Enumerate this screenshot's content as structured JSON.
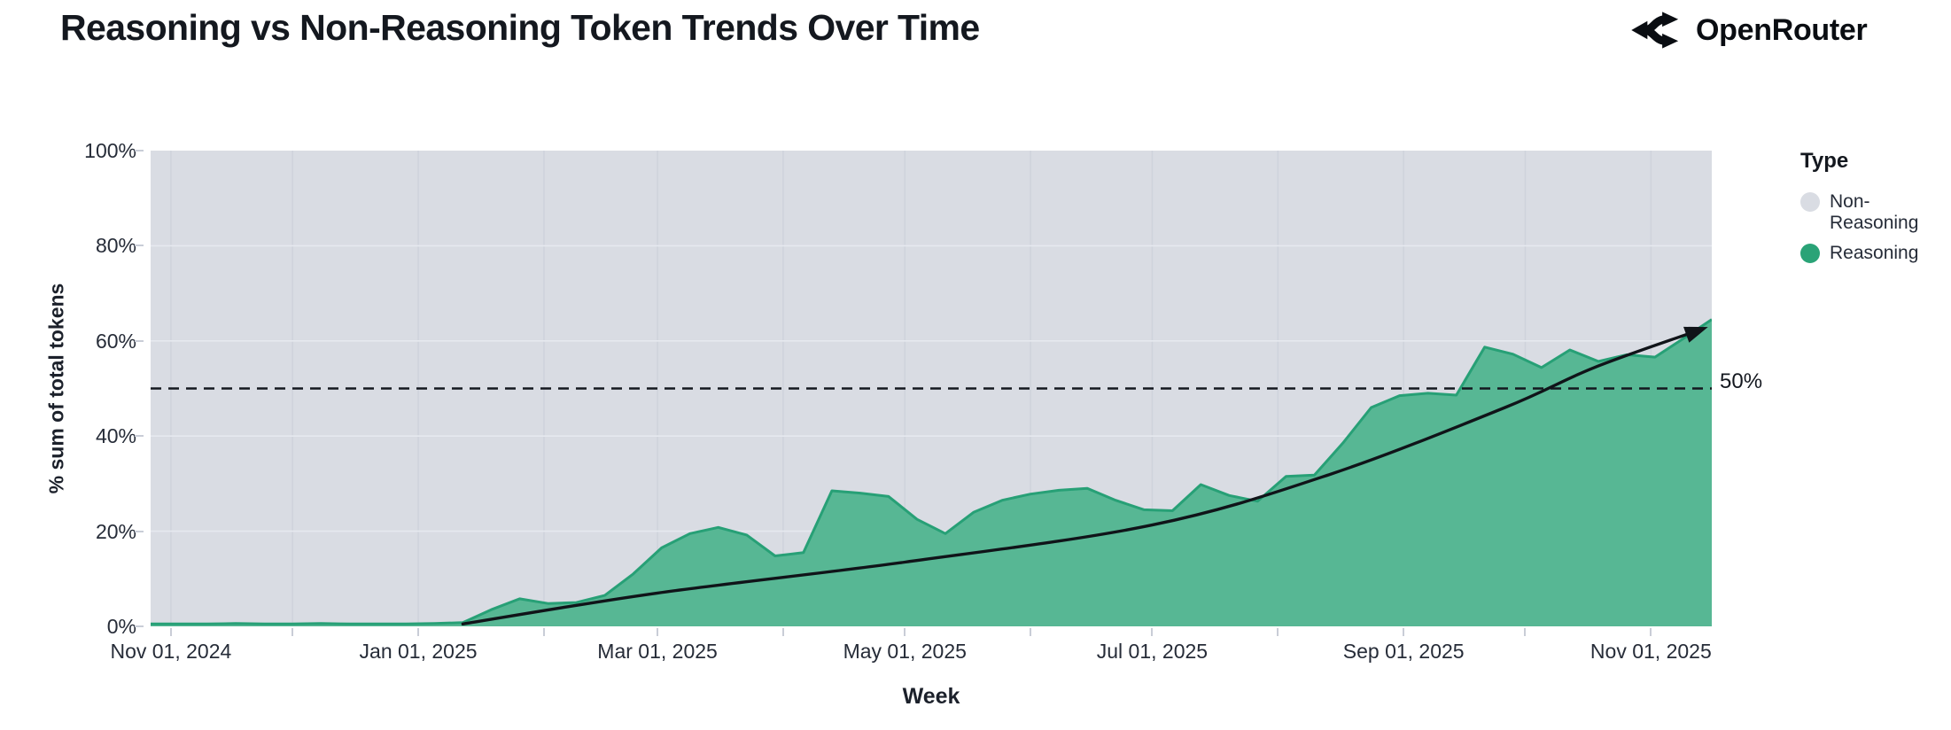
{
  "header": {
    "title": "Reasoning vs Non-Reasoning Token Trends Over Time",
    "brand": "OpenRouter"
  },
  "chart_data": {
    "type": "area",
    "stacked_percent": true,
    "title": "Reasoning vs Non-Reasoning Token Trends Over Time",
    "xlabel": "Week",
    "ylabel": "% sum of total tokens",
    "ylim": [
      0,
      100
    ],
    "x_domain": [
      "2024-10-27",
      "2025-11-16"
    ],
    "grid": true,
    "legend_position": "right",
    "legend_title": "Type",
    "y_ticks": [
      {
        "value": 0,
        "label": "0%"
      },
      {
        "value": 20,
        "label": "20%"
      },
      {
        "value": 40,
        "label": "40%"
      },
      {
        "value": 60,
        "label": "60%"
      },
      {
        "value": 80,
        "label": "80%"
      },
      {
        "value": 100,
        "label": "100%"
      }
    ],
    "x_ticks": [
      {
        "date": "2024-11-01",
        "label": "Nov 01, 2024"
      },
      {
        "date": "2025-01-01",
        "label": "Jan 01, 2025"
      },
      {
        "date": "2025-03-01",
        "label": "Mar 01, 2025"
      },
      {
        "date": "2025-05-01",
        "label": "May 01, 2025"
      },
      {
        "date": "2025-07-01",
        "label": "Jul 01, 2025"
      },
      {
        "date": "2025-09-01",
        "label": "Sep 01, 2025"
      },
      {
        "date": "2025-11-01",
        "label": "Nov 01, 2025"
      }
    ],
    "reference_line": {
      "value": 50,
      "label": "50%",
      "style": "dashed",
      "color": "#14181f"
    },
    "series": [
      {
        "name": "Non-Reasoning",
        "color": "#d9dce3",
        "stack_role": "remainder_to_100"
      },
      {
        "name": "Reasoning",
        "color": "#57b794",
        "stroke": "#27a076",
        "x": [
          "2024-10-27",
          "2024-11-03",
          "2024-11-10",
          "2024-11-17",
          "2024-11-24",
          "2024-12-01",
          "2024-12-08",
          "2024-12-15",
          "2024-12-22",
          "2024-12-29",
          "2025-01-05",
          "2025-01-12",
          "2025-01-19",
          "2025-01-26",
          "2025-02-02",
          "2025-02-09",
          "2025-02-16",
          "2025-02-23",
          "2025-03-02",
          "2025-03-09",
          "2025-03-16",
          "2025-03-23",
          "2025-03-30",
          "2025-04-06",
          "2025-04-13",
          "2025-04-20",
          "2025-04-27",
          "2025-05-04",
          "2025-05-11",
          "2025-05-18",
          "2025-05-25",
          "2025-06-01",
          "2025-06-08",
          "2025-06-15",
          "2025-06-22",
          "2025-06-29",
          "2025-07-06",
          "2025-07-13",
          "2025-07-20",
          "2025-07-27",
          "2025-08-03",
          "2025-08-10",
          "2025-08-17",
          "2025-08-24",
          "2025-08-31",
          "2025-09-07",
          "2025-09-14",
          "2025-09-21",
          "2025-09-28",
          "2025-10-05",
          "2025-10-12",
          "2025-10-19",
          "2025-10-26",
          "2025-11-02",
          "2025-11-09",
          "2025-11-16"
        ],
        "values": [
          0.5,
          0.5,
          0.5,
          0.6,
          0.5,
          0.5,
          0.6,
          0.5,
          0.5,
          0.5,
          0.6,
          0.8,
          3.5,
          5.8,
          4.8,
          5.0,
          6.5,
          11.0,
          16.5,
          19.5,
          20.8,
          19.2,
          14.8,
          15.5,
          28.5,
          28.0,
          27.3,
          22.5,
          19.5,
          24.0,
          26.5,
          27.8,
          28.6,
          29.0,
          26.5,
          24.5,
          24.3,
          29.8,
          27.5,
          26.3,
          31.5,
          31.8,
          38.5,
          46.0,
          48.5,
          49.0,
          48.6,
          58.7,
          57.2,
          54.4,
          58.1,
          55.7,
          57.1,
          56.6,
          60.5,
          64.5
        ]
      }
    ],
    "trend_arrow": {
      "color": "#101419",
      "points": [
        [
          "2025-01-12",
          0.5
        ],
        [
          "2025-03-01",
          7.0
        ],
        [
          "2025-05-01",
          13.5
        ],
        [
          "2025-07-01",
          21.3
        ],
        [
          "2025-08-14",
          32.0
        ],
        [
          "2025-09-26",
          46.0
        ],
        [
          "2025-10-18",
          54.4
        ],
        [
          "2025-11-13",
          62.3
        ]
      ]
    }
  },
  "legend": {
    "title": "Type",
    "items": [
      {
        "label": "Non-Reasoning",
        "color": "#d9dce3"
      },
      {
        "label": "Reasoning",
        "color": "#2aa377"
      }
    ]
  },
  "colors": {
    "panel_background": "#d9dce3",
    "area_fill": "#57b794",
    "area_stroke": "#27a076",
    "grid_vertical": "#cfd3dc",
    "grid_horizontal": "#e6e9ef",
    "text_dark": "#14181f",
    "tick_text": "#262c38"
  }
}
